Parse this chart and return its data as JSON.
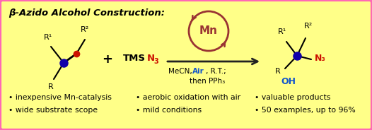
{
  "background_color": "#FFFF88",
  "border_color": "#FF69B4",
  "border_width": 3,
  "title": "β-Azido Alcohol Construction:",
  "title_fontsize": 9.5,
  "bullet_points_col1": [
    "inexpensive Mn-catalysis",
    "wide substrate scope"
  ],
  "bullet_points_col2": [
    "aerobic oxidation with air",
    "mild conditions"
  ],
  "bullet_points_col3": [
    "valuable products",
    "50 examples, up to 96%"
  ],
  "mn_circle_color": "#993333",
  "mn_text_color": "#993333",
  "blue_color": "#1155CC",
  "red_color": "#CC1100",
  "dark_blue": "#1100AA",
  "oh_blue": "#1155CC",
  "arrow_color": "#222222",
  "conditions_text2": "then PPh₃"
}
